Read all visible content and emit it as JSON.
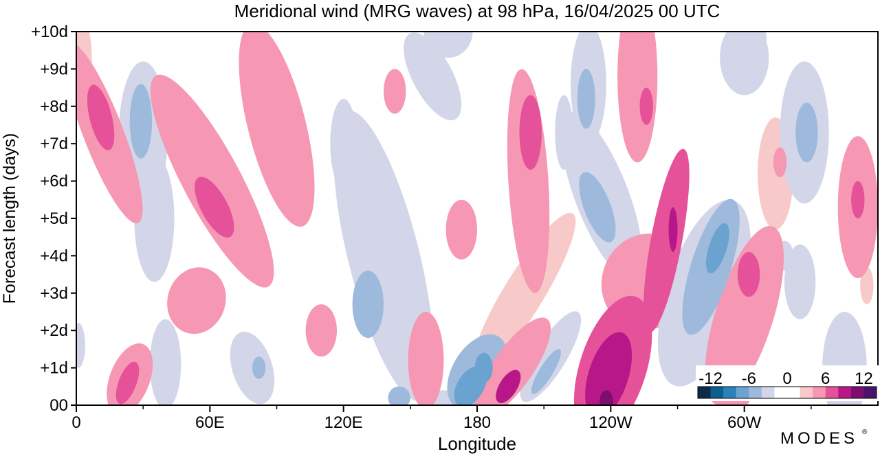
{
  "chart_data": {
    "type": "heatmap",
    "title": "Meridional wind (MRG waves) at  98 hPa,  16/04/2025  00 UTC",
    "xlabel": "Longitude",
    "ylabel": "Forecast length (days)",
    "x_ticks": [
      {
        "lon": 0,
        "label": "0"
      },
      {
        "lon": 60,
        "label": "60E"
      },
      {
        "lon": 120,
        "label": "120E"
      },
      {
        "lon": 180,
        "label": "180"
      },
      {
        "lon": 240,
        "label": "120W"
      },
      {
        "lon": 300,
        "label": "60W"
      }
    ],
    "x_minor_ticks": [
      30,
      90,
      150,
      210,
      270,
      330
    ],
    "y_ticks": [
      {
        "day": 0,
        "label": "00"
      },
      {
        "day": 1,
        "label": "+1d"
      },
      {
        "day": 2,
        "label": "+2d"
      },
      {
        "day": 3,
        "label": "+3d"
      },
      {
        "day": 4,
        "label": "+4d"
      },
      {
        "day": 5,
        "label": "+5d"
      },
      {
        "day": 6,
        "label": "+6d"
      },
      {
        "day": 7,
        "label": "+7d"
      },
      {
        "day": 8,
        "label": "+8d"
      },
      {
        "day": 9,
        "label": "+9d"
      },
      {
        "day": 10,
        "label": "+10d"
      }
    ],
    "xlim": [
      0,
      360
    ],
    "ylim": [
      0,
      10
    ],
    "grid": false,
    "colorbar": {
      "labels": [
        "-12",
        "-6",
        "0",
        "6",
        "12"
      ],
      "levels": [
        -12,
        -10,
        -8,
        -6,
        -4,
        -2,
        0,
        2,
        4,
        6,
        8,
        10,
        12
      ],
      "colors": [
        "#0b2b4a",
        "#0e5f8e",
        "#2a83bb",
        "#6aa3cf",
        "#9dbadc",
        "#d3d6e8",
        "#ffffff",
        "#ffffff",
        "#f8c9c9",
        "#f698b3",
        "#e6529a",
        "#b8178a",
        "#7b0e6e",
        "#4a136b"
      ],
      "placement": "bottom-right"
    },
    "blobs": [
      {
        "lon": 12,
        "day": 7.3,
        "rx": 9,
        "ry": 2.6,
        "tilt": 0.6,
        "v": 5
      },
      {
        "lon": 11,
        "day": 7.7,
        "rx": 5,
        "ry": 0.9,
        "tilt": 0.4,
        "v": 7
      },
      {
        "lon": 3,
        "day": 9.2,
        "rx": 4,
        "ry": 1.1,
        "tilt": 0,
        "v": 3
      },
      {
        "lon": 30,
        "day": 7.2,
        "rx": 11,
        "ry": 2.0,
        "tilt": 0,
        "v": -4
      },
      {
        "lon": 29,
        "day": 7.6,
        "rx": 5,
        "ry": 1.0,
        "tilt": 0,
        "v": -6
      },
      {
        "lon": 35,
        "day": 5.0,
        "rx": 9,
        "ry": 1.7,
        "tilt": 0,
        "v": -3
      },
      {
        "lon": 61,
        "day": 6.0,
        "rx": 13,
        "ry": 3.2,
        "tilt": 0.8,
        "v": 4
      },
      {
        "lon": 62,
        "day": 5.3,
        "rx": 6,
        "ry": 0.9,
        "tilt": 0.8,
        "v": 6
      },
      {
        "lon": 24,
        "day": 0.7,
        "rx": 9,
        "ry": 1.0,
        "tilt": -0.6,
        "v": 5
      },
      {
        "lon": 23,
        "day": 0.6,
        "rx": 4,
        "ry": 0.6,
        "tilt": -0.6,
        "v": 7
      },
      {
        "lon": 1,
        "day": 1.6,
        "rx": 3,
        "ry": 0.6,
        "tilt": 0,
        "v": -3
      },
      {
        "lon": 40,
        "day": 1.1,
        "rx": 7,
        "ry": 1.2,
        "tilt": 0,
        "v": -3
      },
      {
        "lon": 54,
        "day": 2.8,
        "rx": 13,
        "ry": 0.9,
        "tilt": -0.5,
        "v": 4
      },
      {
        "lon": 90,
        "day": 7.5,
        "rx": 13,
        "ry": 2.8,
        "tilt": 0.4,
        "v": 4
      },
      {
        "lon": 79,
        "day": 1.0,
        "rx": 9,
        "ry": 1.0,
        "tilt": 0.5,
        "v": -3
      },
      {
        "lon": 82,
        "day": 1.0,
        "rx": 3,
        "ry": 0.3,
        "tilt": 0,
        "v": -5
      },
      {
        "lon": 110,
        "day": 2.0,
        "rx": 7,
        "ry": 0.7,
        "tilt": 0,
        "v": 4
      },
      {
        "lon": 120,
        "day": 7.0,
        "rx": 6,
        "ry": 1.2,
        "tilt": 0,
        "v": -3
      },
      {
        "lon": 96,
        "day": 5.5,
        "rx": 3,
        "ry": 0.2,
        "tilt": 0,
        "v": -3
      },
      {
        "lon": 143,
        "day": 8.4,
        "rx": 5,
        "ry": 0.6,
        "tilt": 0,
        "v": 4
      },
      {
        "lon": 138,
        "day": 4.0,
        "rx": 16,
        "ry": 4.0,
        "tilt": 0.4,
        "v": -3
      },
      {
        "lon": 131,
        "day": 2.7,
        "rx": 7,
        "ry": 0.9,
        "tilt": 0,
        "v": -5
      },
      {
        "lon": 160,
        "day": 8.8,
        "rx": 9,
        "ry": 1.3,
        "tilt": 0.8,
        "v": -3
      },
      {
        "lon": 167,
        "day": 10.0,
        "rx": 11,
        "ry": 0.7,
        "tilt": 0,
        "v": -3
      },
      {
        "lon": 173,
        "day": 4.7,
        "rx": 7,
        "ry": 0.8,
        "tilt": 0,
        "v": 4
      },
      {
        "lon": 157,
        "day": 1.2,
        "rx": 8,
        "ry": 1.3,
        "tilt": 0,
        "v": 4
      },
      {
        "lon": 180,
        "day": 0.9,
        "rx": 11,
        "ry": 1.1,
        "tilt": -0.9,
        "v": -5
      },
      {
        "lon": 177,
        "day": 0.5,
        "rx": 6,
        "ry": 0.6,
        "tilt": -0.9,
        "v": -8
      },
      {
        "lon": 183,
        "day": 1.0,
        "rx": 4,
        "ry": 0.4,
        "tilt": 0,
        "v": -7
      },
      {
        "lon": 165,
        "day": 0.0,
        "rx": 10,
        "ry": 0.4,
        "tilt": 0,
        "v": -3
      },
      {
        "lon": 145,
        "day": 0.2,
        "rx": 5,
        "ry": 0.3,
        "tilt": 0,
        "v": -5
      },
      {
        "lon": 196,
        "day": 1.0,
        "rx": 9,
        "ry": 1.6,
        "tilt": -1.0,
        "v": 5
      },
      {
        "lon": 194,
        "day": 0.5,
        "rx": 4,
        "ry": 0.5,
        "tilt": -0.9,
        "v": 8
      },
      {
        "lon": 201,
        "day": 3.0,
        "rx": 9,
        "ry": 2.5,
        "tilt": -0.9,
        "v": 3
      },
      {
        "lon": 203,
        "day": 6.0,
        "rx": 9,
        "ry": 3.0,
        "tilt": 0.1,
        "v": 4
      },
      {
        "lon": 204,
        "day": 7.3,
        "rx": 5,
        "ry": 1.0,
        "tilt": 0,
        "v": 6
      },
      {
        "lon": 199,
        "day": 5.1,
        "rx": 3,
        "ry": 0.6,
        "tilt": 0,
        "v": 5
      },
      {
        "lon": 213,
        "day": 1.3,
        "rx": 7,
        "ry": 1.4,
        "tilt": -0.9,
        "v": -3
      },
      {
        "lon": 211,
        "day": 0.9,
        "rx": 3,
        "ry": 0.7,
        "tilt": -0.9,
        "v": -5
      },
      {
        "lon": 219,
        "day": 7.3,
        "rx": 4,
        "ry": 1.0,
        "tilt": 0,
        "v": -3
      },
      {
        "lon": 230,
        "day": 8.6,
        "rx": 8,
        "ry": 1.6,
        "tilt": 0,
        "v": -3
      },
      {
        "lon": 229,
        "day": 8.2,
        "rx": 4,
        "ry": 0.8,
        "tilt": 0,
        "v": -5
      },
      {
        "lon": 236,
        "day": 5.6,
        "rx": 12,
        "ry": 2.4,
        "tilt": 0.6,
        "v": -4
      },
      {
        "lon": 234,
        "day": 5.3,
        "rx": 6,
        "ry": 1.0,
        "tilt": 0.6,
        "v": -6
      },
      {
        "lon": 241,
        "day": 1.0,
        "rx": 15,
        "ry": 2.0,
        "tilt": -0.5,
        "v": 6
      },
      {
        "lon": 239,
        "day": 0.8,
        "rx": 9,
        "ry": 1.2,
        "tilt": -0.5,
        "v": 9
      },
      {
        "lon": 238,
        "day": 0.1,
        "rx": 3,
        "ry": 0.3,
        "tilt": 0,
        "v": 11
      },
      {
        "lon": 256,
        "day": 3.3,
        "rx": 20,
        "ry": 1.3,
        "tilt": -0.5,
        "v": 4
      },
      {
        "lon": 265,
        "day": 4.4,
        "rx": 7,
        "ry": 2.5,
        "tilt": -0.3,
        "v": 6
      },
      {
        "lon": 268,
        "day": 4.7,
        "rx": 2,
        "ry": 0.6,
        "tilt": 0,
        "v": 9
      },
      {
        "lon": 252,
        "day": 8.8,
        "rx": 9,
        "ry": 2.3,
        "tilt": 0,
        "v": 4
      },
      {
        "lon": 256,
        "day": 8.0,
        "rx": 3,
        "ry": 0.5,
        "tilt": 0,
        "v": 6
      },
      {
        "lon": 282,
        "day": 3.0,
        "rx": 17,
        "ry": 2.6,
        "tilt": -0.5,
        "v": -4
      },
      {
        "lon": 285,
        "day": 3.7,
        "rx": 9,
        "ry": 1.9,
        "tilt": -0.5,
        "v": -6
      },
      {
        "lon": 288,
        "day": 4.2,
        "rx": 4,
        "ry": 0.7,
        "tilt": -0.5,
        "v": -8
      },
      {
        "lon": 300,
        "day": 2.4,
        "rx": 13,
        "ry": 2.5,
        "tilt": -0.5,
        "v": 4
      },
      {
        "lon": 302,
        "day": 3.5,
        "rx": 5,
        "ry": 0.6,
        "tilt": 0,
        "v": 6
      },
      {
        "lon": 314,
        "day": 6.2,
        "rx": 8,
        "ry": 1.5,
        "tilt": 0,
        "v": 3
      },
      {
        "lon": 316,
        "day": 6.5,
        "rx": 3,
        "ry": 0.4,
        "tilt": 0,
        "v": 5
      },
      {
        "lon": 296,
        "day": 0.6,
        "rx": 8,
        "ry": 0.8,
        "tilt": 0,
        "v": 5
      },
      {
        "lon": 300,
        "day": 9.3,
        "rx": 11,
        "ry": 1.0,
        "tilt": 0,
        "v": -3
      },
      {
        "lon": 306,
        "day": 9.8,
        "rx": 4,
        "ry": 0.4,
        "tilt": 0,
        "v": -3
      },
      {
        "lon": 327,
        "day": 7.3,
        "rx": 11,
        "ry": 1.9,
        "tilt": 0,
        "v": -4
      },
      {
        "lon": 328,
        "day": 7.3,
        "rx": 5,
        "ry": 0.8,
        "tilt": 0,
        "v": -6
      },
      {
        "lon": 325,
        "day": 3.3,
        "rx": 7,
        "ry": 1.0,
        "tilt": 0,
        "v": -3
      },
      {
        "lon": 318,
        "day": 4.0,
        "rx": 4,
        "ry": 0.4,
        "tilt": 0,
        "v": -3
      },
      {
        "lon": 351,
        "day": 5.3,
        "rx": 9,
        "ry": 1.9,
        "tilt": 0,
        "v": 4
      },
      {
        "lon": 351,
        "day": 5.5,
        "rx": 3,
        "ry": 0.5,
        "tilt": 0,
        "v": 6
      },
      {
        "lon": 355,
        "day": 3.2,
        "rx": 3,
        "ry": 0.5,
        "tilt": 0,
        "v": 3
      },
      {
        "lon": 345,
        "day": 1.0,
        "rx": 10,
        "ry": 1.5,
        "tilt": 0,
        "v": -3
      }
    ]
  },
  "branding": {
    "logo_text": "MODES",
    "mark": "®"
  }
}
